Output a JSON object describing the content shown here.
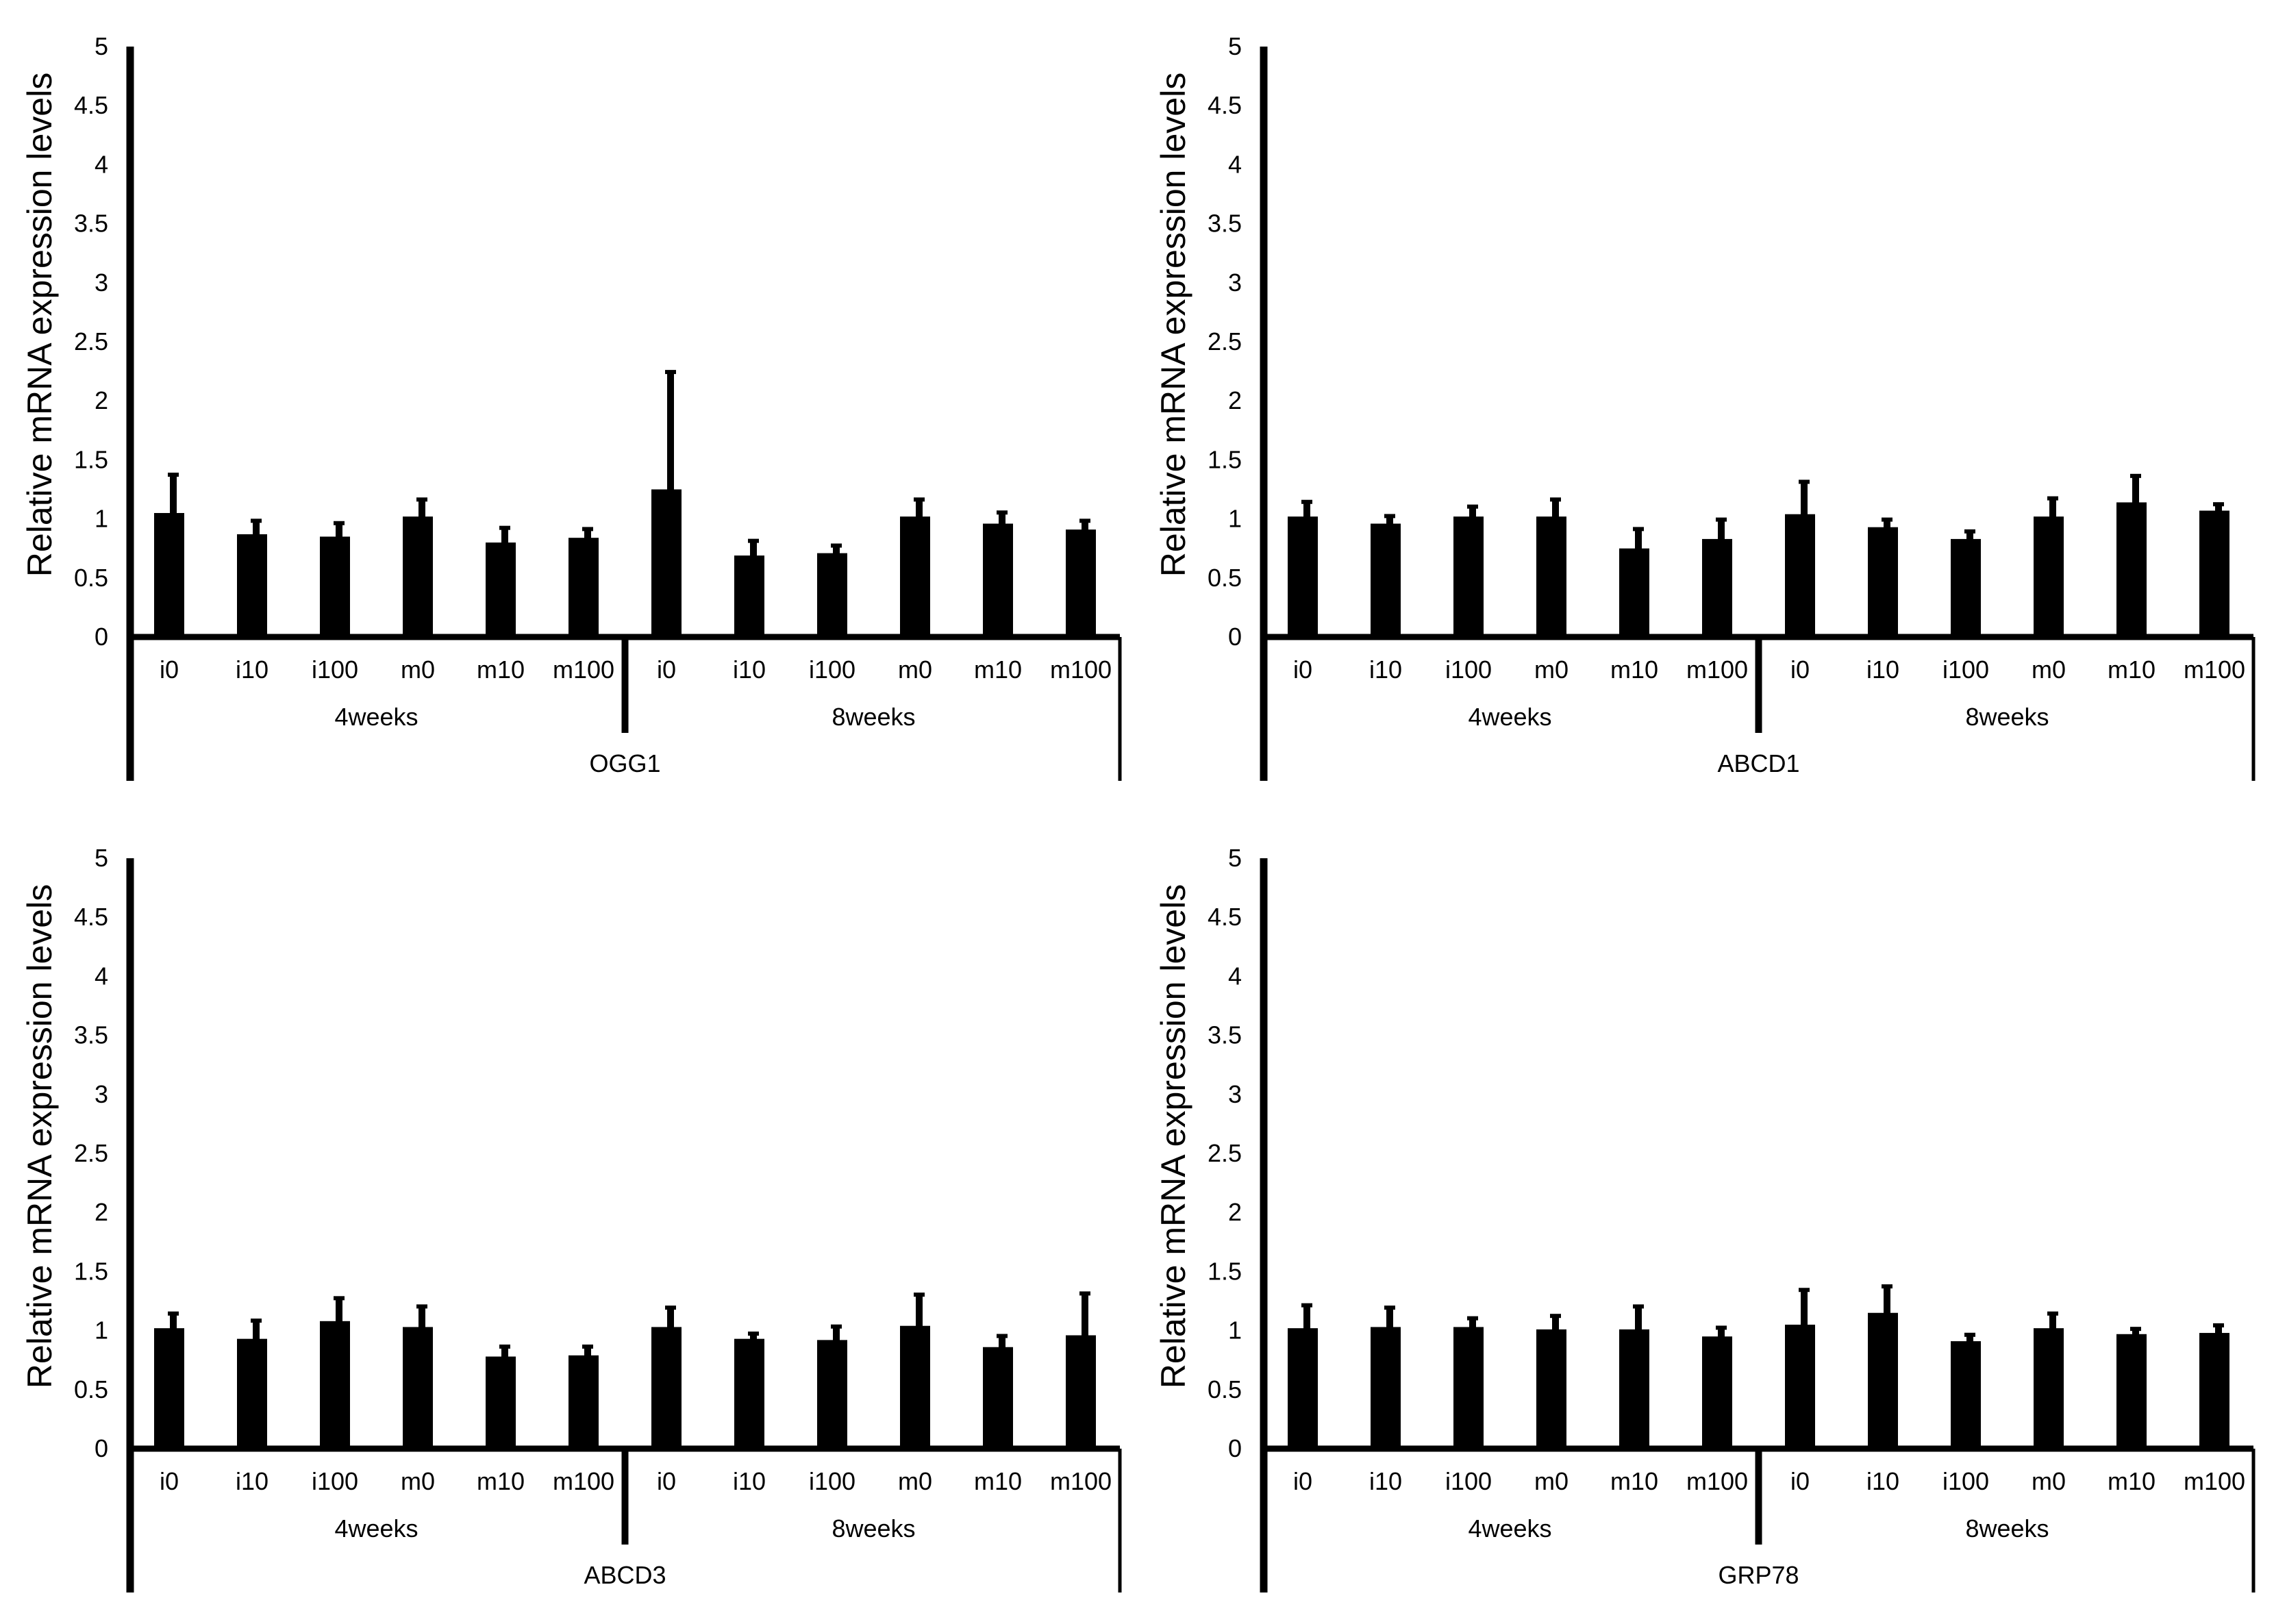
{
  "colors": {
    "bar": "#000000",
    "axis": "#000000",
    "background": "#ffffff"
  },
  "chart_data": [
    {
      "type": "bar",
      "title": "OGG1",
      "ylabel": "Relative mRNA expression levels",
      "ylim": [
        0,
        5
      ],
      "yticks": [
        "0",
        "0.5",
        "1",
        "1.5",
        "2",
        "2.5",
        "3",
        "3.5",
        "4",
        "4.5",
        "5"
      ],
      "groups": [
        {
          "label": "4weeks",
          "categories": [
            "i0",
            "i10",
            "i100",
            "m0",
            "m10",
            "m100"
          ]
        },
        {
          "label": "8weeks",
          "categories": [
            "i0",
            "i10",
            "i100",
            "m0",
            "m10",
            "m100"
          ]
        }
      ],
      "values": [
        1.05,
        0.87,
        0.85,
        1.02,
        0.8,
        0.84,
        1.25,
        0.69,
        0.71,
        1.02,
        0.96,
        0.91
      ],
      "errors": [
        0.33,
        0.12,
        0.12,
        0.15,
        0.13,
        0.08,
        1.0,
        0.13,
        0.07,
        0.15,
        0.1,
        0.08
      ],
      "grid": false
    },
    {
      "type": "bar",
      "title": "ABCD1",
      "ylabel": "Relative mRNA expression levels",
      "ylim": [
        0,
        5
      ],
      "yticks": [
        "0",
        "0.5",
        "1",
        "1.5",
        "2",
        "2.5",
        "3",
        "3.5",
        "4",
        "4.5",
        "5"
      ],
      "groups": [
        {
          "label": "4weeks",
          "categories": [
            "i0",
            "i10",
            "i100",
            "m0",
            "m10",
            "m100"
          ]
        },
        {
          "label": "8weeks",
          "categories": [
            "i0",
            "i10",
            "i100",
            "m0",
            "m10",
            "m100"
          ]
        }
      ],
      "values": [
        1.02,
        0.96,
        1.02,
        1.02,
        0.75,
        0.83,
        1.04,
        0.93,
        0.83,
        1.02,
        1.14,
        1.07
      ],
      "errors": [
        0.13,
        0.07,
        0.09,
        0.15,
        0.17,
        0.17,
        0.28,
        0.07,
        0.07,
        0.16,
        0.23,
        0.06
      ],
      "grid": false
    },
    {
      "type": "bar",
      "title": "ABCD3",
      "ylabel": "Relative mRNA expression levels",
      "ylim": [
        0,
        5
      ],
      "yticks": [
        "0",
        "0.5",
        "1",
        "1.5",
        "2",
        "2.5",
        "3",
        "3.5",
        "4",
        "4.5",
        "5"
      ],
      "groups": [
        {
          "label": "4weeks",
          "categories": [
            "i0",
            "i10",
            "i100",
            "m0",
            "m10",
            "m100"
          ]
        },
        {
          "label": "8weeks",
          "categories": [
            "i0",
            "i10",
            "i100",
            "m0",
            "m10",
            "m100"
          ]
        }
      ],
      "values": [
        1.02,
        0.93,
        1.08,
        1.03,
        0.78,
        0.79,
        1.03,
        0.93,
        0.92,
        1.04,
        0.86,
        0.96
      ],
      "errors": [
        0.13,
        0.16,
        0.2,
        0.18,
        0.09,
        0.08,
        0.17,
        0.05,
        0.12,
        0.27,
        0.1,
        0.36
      ],
      "grid": false
    },
    {
      "type": "bar",
      "title": "GRP78",
      "ylabel": "Relative mRNA expression levels",
      "ylim": [
        0,
        5
      ],
      "yticks": [
        "0",
        "0.5",
        "1",
        "1.5",
        "2",
        "2.5",
        "3",
        "3.5",
        "4",
        "4.5",
        "5"
      ],
      "groups": [
        {
          "label": "4weeks",
          "categories": [
            "i0",
            "i10",
            "i100",
            "m0",
            "m10",
            "m100"
          ]
        },
        {
          "label": "8weeks",
          "categories": [
            "i0",
            "i10",
            "i100",
            "m0",
            "m10",
            "m100"
          ]
        }
      ],
      "values": [
        1.02,
        1.03,
        1.03,
        1.01,
        1.01,
        0.95,
        1.05,
        1.15,
        0.91,
        1.02,
        0.97,
        0.98
      ],
      "errors": [
        0.2,
        0.17,
        0.08,
        0.12,
        0.2,
        0.08,
        0.3,
        0.23,
        0.06,
        0.13,
        0.05,
        0.07
      ],
      "grid": false
    }
  ]
}
